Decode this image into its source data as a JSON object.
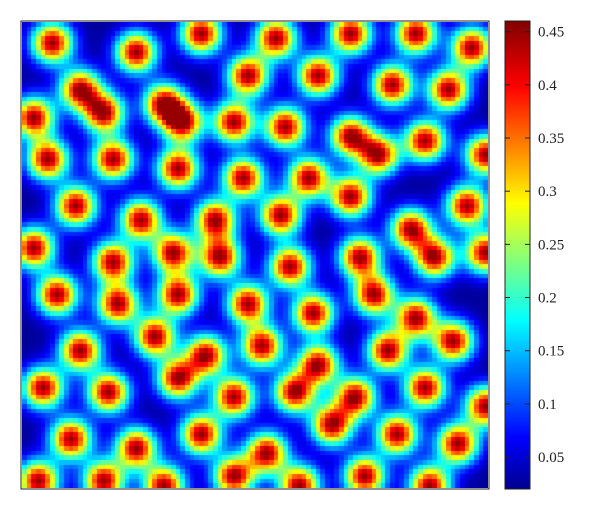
{
  "chart_data": {
    "type": "heatmap",
    "title": "",
    "xlabel": "",
    "ylabel": "",
    "colormap": "jet",
    "colorbar": {
      "range": [
        0.02,
        0.46
      ],
      "ticks": [
        0.05,
        0.1,
        0.15,
        0.2,
        0.25,
        0.3,
        0.35,
        0.4,
        0.45
      ],
      "tick_labels": [
        "0.05",
        "0.1",
        "0.15",
        "0.2",
        "0.25",
        "0.3",
        "0.35",
        "0.4",
        "0.45"
      ],
      "placement": "right"
    },
    "background_value": 0.03,
    "spot_peak_value": 0.45,
    "field_domain": {
      "x": [
        0,
        100
      ],
      "y": [
        0,
        100
      ]
    },
    "spots": [
      {
        "x": 6,
        "y": 4
      },
      {
        "x": 24,
        "y": 6
      },
      {
        "x": 38,
        "y": 2
      },
      {
        "x": 54,
        "y": 3
      },
      {
        "x": 70,
        "y": 2
      },
      {
        "x": 84,
        "y": 2
      },
      {
        "x": 96,
        "y": 5
      },
      {
        "x": 12,
        "y": 14
      },
      {
        "x": 30,
        "y": 17
      },
      {
        "x": 48,
        "y": 11
      },
      {
        "x": 63,
        "y": 11
      },
      {
        "x": 79,
        "y": 13
      },
      {
        "x": 91,
        "y": 14
      },
      {
        "x": 2,
        "y": 20
      },
      {
        "x": 17,
        "y": 19
      },
      {
        "x": 34,
        "y": 21
      },
      {
        "x": 45,
        "y": 21
      },
      {
        "x": 56,
        "y": 22
      },
      {
        "x": 70,
        "y": 24
      },
      {
        "x": 5,
        "y": 29
      },
      {
        "x": 19,
        "y": 29
      },
      {
        "x": 33,
        "y": 31
      },
      {
        "x": 47,
        "y": 33
      },
      {
        "x": 61,
        "y": 33
      },
      {
        "x": 76,
        "y": 28
      },
      {
        "x": 86,
        "y": 25
      },
      {
        "x": 99,
        "y": 28
      },
      {
        "x": 11,
        "y": 39
      },
      {
        "x": 25,
        "y": 42
      },
      {
        "x": 41,
        "y": 42
      },
      {
        "x": 55,
        "y": 41
      },
      {
        "x": 70,
        "y": 37
      },
      {
        "x": 83,
        "y": 44
      },
      {
        "x": 95,
        "y": 39
      },
      {
        "x": 2,
        "y": 48
      },
      {
        "x": 19,
        "y": 51
      },
      {
        "x": 32,
        "y": 49
      },
      {
        "x": 42,
        "y": 50
      },
      {
        "x": 57,
        "y": 52
      },
      {
        "x": 72,
        "y": 50
      },
      {
        "x": 88,
        "y": 50
      },
      {
        "x": 99,
        "y": 49
      },
      {
        "x": 7,
        "y": 58
      },
      {
        "x": 20,
        "y": 60
      },
      {
        "x": 33,
        "y": 58
      },
      {
        "x": 48,
        "y": 60
      },
      {
        "x": 62,
        "y": 62
      },
      {
        "x": 75,
        "y": 58
      },
      {
        "x": 84,
        "y": 63
      },
      {
        "x": 12,
        "y": 70
      },
      {
        "x": 28,
        "y": 67
      },
      {
        "x": 39,
        "y": 71
      },
      {
        "x": 51,
        "y": 69
      },
      {
        "x": 63,
        "y": 73
      },
      {
        "x": 78,
        "y": 70
      },
      {
        "x": 92,
        "y": 68
      },
      {
        "x": 4,
        "y": 78
      },
      {
        "x": 18,
        "y": 79
      },
      {
        "x": 33,
        "y": 76
      },
      {
        "x": 45,
        "y": 80
      },
      {
        "x": 58,
        "y": 79
      },
      {
        "x": 71,
        "y": 80
      },
      {
        "x": 86,
        "y": 78
      },
      {
        "x": 99,
        "y": 82
      },
      {
        "x": 10,
        "y": 89
      },
      {
        "x": 24,
        "y": 91
      },
      {
        "x": 38,
        "y": 88
      },
      {
        "x": 52,
        "y": 92
      },
      {
        "x": 66,
        "y": 86
      },
      {
        "x": 80,
        "y": 88
      },
      {
        "x": 93,
        "y": 90
      },
      {
        "x": 3,
        "y": 98
      },
      {
        "x": 17,
        "y": 98
      },
      {
        "x": 30,
        "y": 99
      },
      {
        "x": 45,
        "y": 97
      },
      {
        "x": 59,
        "y": 99
      },
      {
        "x": 73,
        "y": 97
      },
      {
        "x": 87,
        "y": 99
      }
    ]
  }
}
